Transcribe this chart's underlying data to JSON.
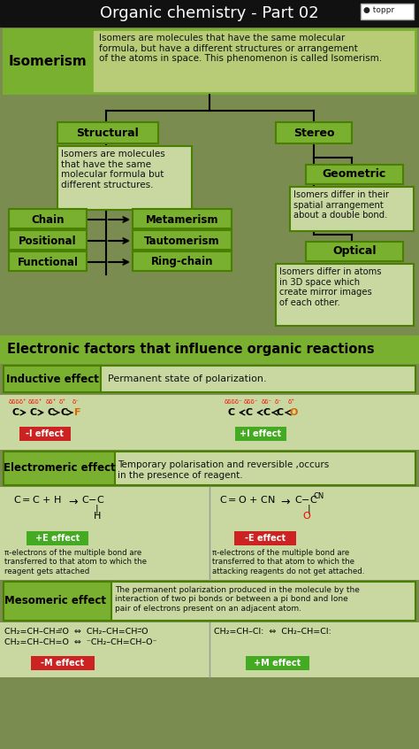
{
  "title": "Organic chemistry - Part 02",
  "bg_dark": "#111111",
  "bg_green_tree": "#7a8c50",
  "box_green": "#7ab030",
  "box_light": "#c8d8a0",
  "box_outline": "#4a8000",
  "text_white": "#ffffff",
  "text_black": "#111111",
  "section1_title": "Isomerism",
  "section1_desc": "Isomers are molecules that have the same molecular\nformula, but have a different structures or arrangement\nof the atoms in space. This phenomenon is called Isomerism.",
  "structural_label": "Structural",
  "structural_desc": "Isomers are molecules\nthat have the same\nmolecular formula but\ndifferent structures.",
  "stereo_label": "Stereo",
  "geometric_label": "Geometric",
  "geometric_desc": "Isomers differ in their\nspatial arrangement\nabout a double bond.",
  "optical_label": "Optical",
  "optical_desc": "Isomers differ in atoms\nin 3D space which\ncreate mirror images\nof each other.",
  "left_items": [
    "Chain",
    "Positional",
    "Functional"
  ],
  "right_items": [
    "Metamerism",
    "Tautomerism",
    "Ring-chain"
  ],
  "section2_title": "Electronic factors that influence organic reactions",
  "inductive_label": "Inductive effect",
  "inductive_desc": "Permanent state of polarization.",
  "electromeric_label": "Electromeric effect",
  "electromeric_desc": "Temporary polarisation and reversible ,occurs\nin the presence of reagent.",
  "plus_e": "+E effect",
  "minus_e": "-E effect",
  "pe_left_desc": "π-electrons of the multiple bond are\ntransferred to that atom to which the\nreagent gets attached",
  "pe_right_desc": "π-electrons of the multiple bond are\ntransferred to that atom to which the\nattacking reagents do not get attached.",
  "mesomeric_label": "Mesomeric effect",
  "mesomeric_desc": "The permanent polarization produced in the molecule by the\ninteraction of two pi bonds or between a pi bond and lone\npair of electrons present on an adjacent atom.",
  "minus_m": "-M effect",
  "plus_m": "+M effect",
  "red_label": "#cc2222",
  "green_label": "#44aa22",
  "orange_atom": "#dd6600",
  "red_atom": "#cc0000"
}
